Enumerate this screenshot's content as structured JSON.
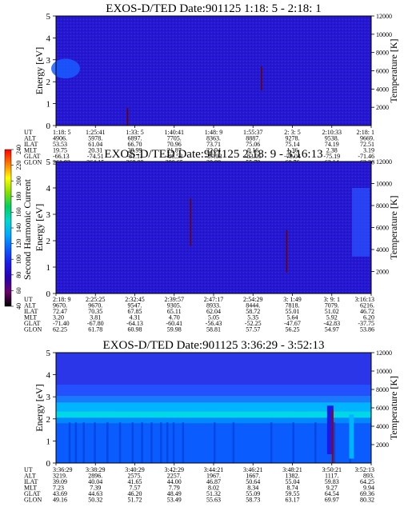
{
  "figure": {
    "colorbar": {
      "label": "Second Harmonic Current",
      "ticks": [
        "40",
        "60",
        "80",
        "100",
        "120",
        "140",
        "160",
        "180",
        "200",
        "220",
        "240"
      ],
      "colors": [
        "#000000",
        "#6a006a",
        "#2a00b0",
        "#1a1ae8",
        "#0a5cff",
        "#00a8ff",
        "#00d8d0",
        "#00d060",
        "#88e000",
        "#ffff00",
        "#ff7a00",
        "#ff0000"
      ]
    },
    "y_axis_label": "Energy [eV]",
    "y2_axis_label": "Temperature [K]",
    "row_labels": [
      "UT",
      "ALT",
      "ILAT",
      "MLT",
      "GLAT",
      "GLON"
    ]
  },
  "chart_data": [
    {
      "type": "heatmap",
      "title": "EXOS-D/TED   Date:901125  1:18: 5 - 2:18: 1",
      "ylabel": "Energy [eV]",
      "y2label": "Temperature [K]",
      "ylim": [
        0,
        5
      ],
      "yticks": [
        0,
        1,
        2,
        3,
        4,
        5
      ],
      "y2lim": [
        0,
        12000
      ],
      "y2ticks": [
        2000,
        4000,
        6000,
        8000,
        10000,
        12000
      ],
      "table": {
        "UT": [
          "1:18: 5",
          "1:25:41",
          "1:33: 5",
          "1:40:41",
          "1:48: 9",
          "1:55:37",
          "2: 3: 5",
          "2:10:33",
          "2:18: 1"
        ],
        "ALT": [
          "4906.",
          "5978.",
          "6897.",
          "7705.",
          "8363.",
          "8887.",
          "9278.",
          "9538.",
          "9669."
        ],
        "ILAT": [
          "53.53",
          "61.04",
          "66.70",
          "70.96",
          "73.71",
          "75.06",
          "75.14",
          "74.19",
          "72.51"
        ],
        "MLT": [
          "19.75",
          "20.31",
          "20.99",
          "21.87",
          "22.94",
          "0.16",
          "1.36",
          "2.38",
          "3.19"
        ],
        "GLAT": [
          "-66.13",
          "-74.51",
          "-81.11",
          "-86.53",
          "-87.03",
          "-83.05",
          "-79.04",
          "-75.19",
          "-71.46"
        ],
        "GLON": [
          "261.93",
          "264.15",
          "269.09",
          "290.65",
          "30.88",
          "55.79",
          "60.76",
          "62.14",
          "62.26"
        ]
      },
      "spikes": [
        {
          "time_frac": 0.225,
          "e_from": 0.0,
          "e_to": 0.8
        },
        {
          "time_frac": 0.65,
          "e_from": 1.6,
          "e_to": 2.7
        }
      ]
    },
    {
      "type": "heatmap",
      "title": "EXOS-D/TED   Date:901125  2:18: 9 - 3:16:13",
      "ylabel": "Energy [eV]",
      "y2label": "Temperature [K]",
      "ylim": [
        0,
        5
      ],
      "yticks": [
        0,
        1,
        2,
        3,
        4,
        5
      ],
      "y2lim": [
        0,
        12000
      ],
      "y2ticks": [
        2000,
        4000,
        6000,
        8000,
        10000,
        12000
      ],
      "table": {
        "UT": [
          "2:18: 9",
          "2:25:25",
          "2:32:45",
          "2:39:57",
          "2:47:17",
          "2:54:29",
          "3: 1:49",
          "3: 9: 1",
          "3:16:13"
        ],
        "ALT": [
          "9670.",
          "9670.",
          "9547.",
          "9305.",
          "8933.",
          "8444.",
          "7818.",
          "7079.",
          "6216."
        ],
        "ILAT": [
          "72.47",
          "70.35",
          "67.85",
          "65.11",
          "62.04",
          "58.72",
          "55.01",
          "51.02",
          "46.72"
        ],
        "MLT": [
          "3.20",
          "3.81",
          "4.31",
          "4.70",
          "5.05",
          "5.35",
          "5.64",
          "5.92",
          "6.20"
        ],
        "GLAT": [
          "-71.40",
          "-67.80",
          "-64.13",
          "-60.41",
          "-56.43",
          "-52.25",
          "-47.67",
          "-42.83",
          "-37.75"
        ],
        "GLON": [
          "62.25",
          "61.78",
          "60.98",
          "59.98",
          "58.81",
          "57.57",
          "56.25",
          "54.97",
          "53.86"
        ]
      },
      "spikes": [
        {
          "time_frac": 0.425,
          "e_from": 1.8,
          "e_to": 3.6
        },
        {
          "time_frac": 0.73,
          "e_from": 0.8,
          "e_to": 2.4
        }
      ]
    },
    {
      "type": "heatmap",
      "title": "EXOS-D/TED   Date:901125  3:36:29 - 3:52:13",
      "ylabel": "Energy [eV]",
      "y2label": "Temperature [K]",
      "ylim": [
        0,
        5
      ],
      "yticks": [
        0,
        1,
        2,
        3,
        4,
        5
      ],
      "y2lim": [
        0,
        12000
      ],
      "y2ticks": [
        2000,
        4000,
        6000,
        8000,
        10000,
        12000
      ],
      "table": {
        "UT": [
          "3:36:29",
          "3:38:29",
          "3:40:29",
          "3:42:29",
          "3:44:21",
          "3:46:21",
          "3:48:21",
          "3:50:21",
          "3:52:13"
        ],
        "ALT": [
          "3219.",
          "2896.",
          "2575.",
          "2257.",
          "1967.",
          "1667.",
          "1382.",
          "1117.",
          "893."
        ],
        "ILAT": [
          "39.09",
          "40.04",
          "41.65",
          "44.00",
          "46.87",
          "50.64",
          "55.04",
          "59.83",
          "64.25"
        ],
        "MLT": [
          "7.23",
          "7.39",
          "7.57",
          "7.79",
          "8.02",
          "8.34",
          "8.74",
          "9.27",
          "9.94"
        ],
        "GLAT": [
          "43.69",
          "44.63",
          "46.20",
          "48.49",
          "51.32",
          "55.09",
          "59.55",
          "64.54",
          "69.36"
        ],
        "GLON": [
          "49.16",
          "50.32",
          "51.72",
          "53.49",
          "55.63",
          "58.73",
          "63.17",
          "69.97",
          "80.32"
        ]
      },
      "bands": [
        {
          "e_from": 0.0,
          "e_to": 1.8,
          "color": "#0a5cff"
        },
        {
          "e_from": 1.8,
          "e_to": 2.05,
          "color": "#0088ff"
        },
        {
          "e_from": 2.05,
          "e_to": 2.35,
          "color": "#00d8e8"
        },
        {
          "e_from": 2.35,
          "e_to": 2.75,
          "color": "#00b4ff"
        },
        {
          "e_from": 2.75,
          "e_to": 3.05,
          "color": "#1a7aff"
        },
        {
          "e_from": 3.05,
          "e_to": 3.55,
          "color": "#2450ff"
        },
        {
          "e_from": 3.55,
          "e_to": 5.0,
          "color": "#2a36e8"
        }
      ]
    }
  ]
}
